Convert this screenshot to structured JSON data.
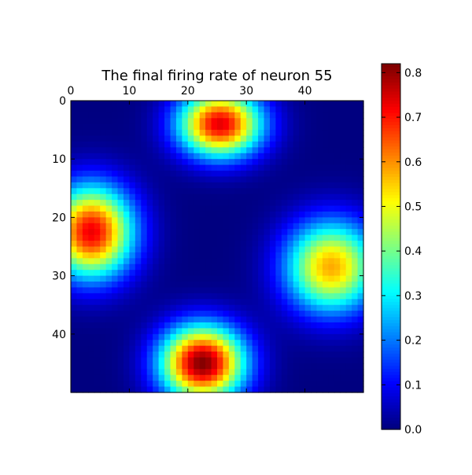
{
  "chart_data": {
    "type": "heatmap",
    "title": "The final firing rate of neuron 55",
    "grid_size": [
      50,
      50
    ],
    "x_ticks": [
      0,
      10,
      20,
      30,
      40
    ],
    "y_ticks": [
      0,
      10,
      20,
      30,
      40
    ],
    "x_tick_position": "top",
    "value_range": [
      0.0,
      0.82
    ],
    "colormap": "jet",
    "background_value": 0.0,
    "blobs": [
      {
        "center_col": 25,
        "center_row": 3.5,
        "peak": 0.74,
        "sigma_col": 5.0,
        "sigma_row": 4.0
      },
      {
        "center_col": 3,
        "center_row": 22,
        "peak": 0.73,
        "sigma_col": 5.0,
        "sigma_row": 5.5
      },
      {
        "center_col": 44,
        "center_row": 28,
        "peak": 0.58,
        "sigma_col": 5.5,
        "sigma_row": 5.5
      },
      {
        "center_col": 22,
        "center_row": 44.5,
        "peak": 0.82,
        "sigma_col": 5.0,
        "sigma_row": 4.5
      }
    ],
    "colorbar": {
      "ticks": [
        "0.0",
        "0.1",
        "0.2",
        "0.3",
        "0.4",
        "0.5",
        "0.6",
        "0.7",
        "0.8"
      ],
      "min": 0.0,
      "max": 0.82
    }
  }
}
